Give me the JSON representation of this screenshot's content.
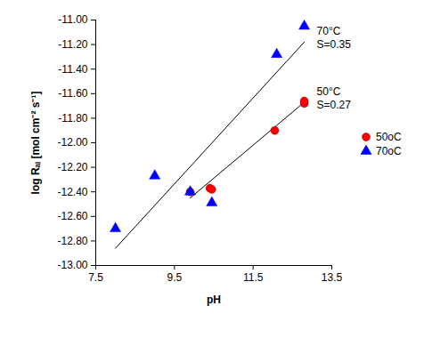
{
  "chart_data": {
    "type": "scatter",
    "x_label": "pH",
    "y_label": "log Rₐₗ [mol cm⁻² s⁻¹]",
    "xlim": [
      7.5,
      13.5
    ],
    "xticks": [
      7.5,
      9.5,
      11.5,
      13.5
    ],
    "ylim": [
      -13,
      -11
    ],
    "yticks": [
      {
        "value": -13,
        "label": "-13.00"
      },
      {
        "value": -12.8,
        "label": "-12.80"
      },
      {
        "value": -12.6,
        "label": "-12.60"
      },
      {
        "value": -12.4,
        "label": "-12.40"
      },
      {
        "value": -12.2,
        "label": "-12.20"
      },
      {
        "value": -12,
        "label": "-12.00"
      },
      {
        "value": -11.8,
        "label": "-11.80"
      },
      {
        "value": -11.6,
        "label": "-11.60"
      },
      {
        "value": -11.4,
        "label": "-11.40"
      },
      {
        "value": -11.2,
        "label": "-11.20"
      },
      {
        "value": -11,
        "label": "-11.00"
      }
    ],
    "grid": false,
    "legend": "right",
    "series": [
      {
        "name": "50oC",
        "color": "#ff0000",
        "marker": "circle",
        "x": [
          9.9,
          10.4,
          10.45,
          12.05,
          12.8,
          12.8
        ],
        "values": [
          -12.4,
          -12.37,
          -12.38,
          -11.9,
          -11.68,
          -11.66
        ],
        "fit": {
          "x": [
            9.9,
            12.8
          ],
          "values": [
            -12.45,
            -11.67
          ]
        },
        "annotation": [
          "50°C",
          "S=0.27"
        ]
      },
      {
        "name": "70oC",
        "color": "#0000ff",
        "marker": "triangle",
        "x": [
          8.0,
          9.0,
          9.9,
          10.45,
          12.1,
          12.8
        ],
        "values": [
          -12.7,
          -12.27,
          -12.4,
          -12.49,
          -11.28,
          -11.05
        ],
        "fit": {
          "x": [
            8.0,
            12.8
          ],
          "values": [
            -12.86,
            -11.18
          ]
        },
        "annotation": [
          "70°C",
          "S=0.35"
        ]
      }
    ]
  }
}
